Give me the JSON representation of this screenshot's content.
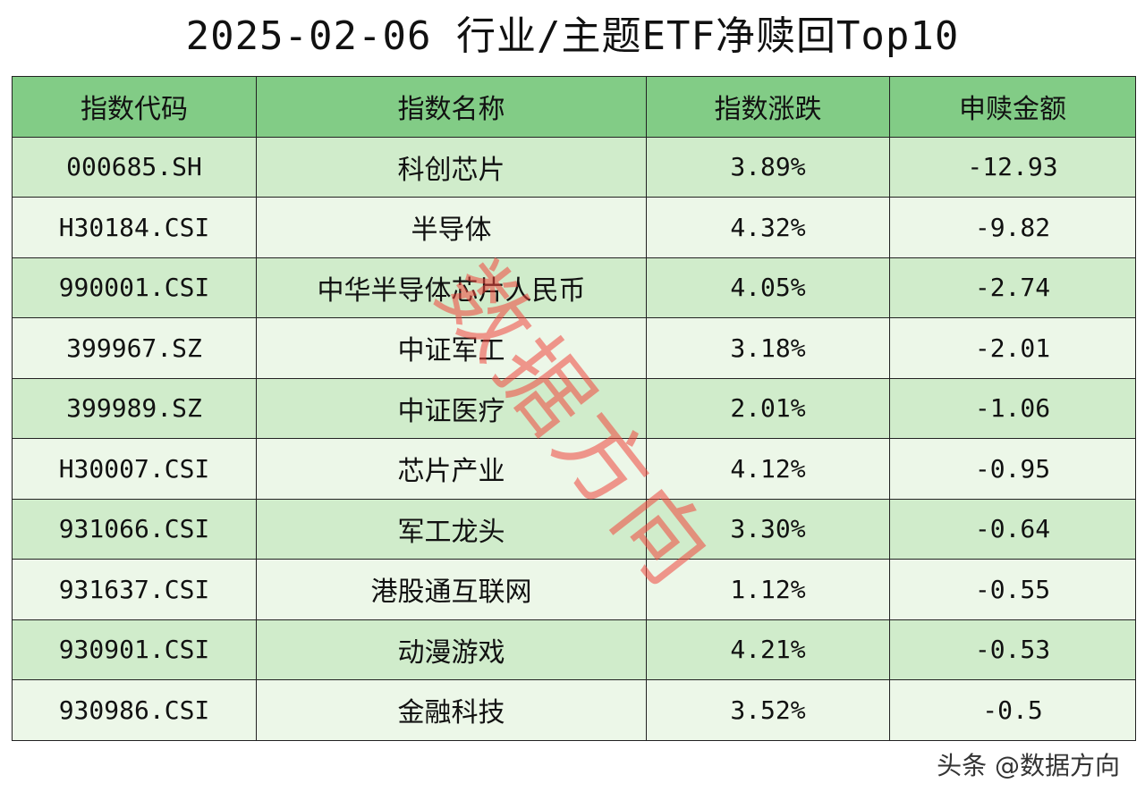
{
  "title": "2025-02-06 行业/主题ETF净赎回Top10",
  "table": {
    "headers": [
      "指数代码",
      "指数名称",
      "指数涨跌",
      "申赎金额"
    ],
    "rows": [
      {
        "code": "000685.SH",
        "name": "科创芯片",
        "change": "3.89%",
        "amount": "-12.93"
      },
      {
        "code": "H30184.CSI",
        "name": "半导体",
        "change": "4.32%",
        "amount": "-9.82"
      },
      {
        "code": "990001.CSI",
        "name": "中华半导体芯片人民币",
        "change": "4.05%",
        "amount": "-2.74"
      },
      {
        "code": "399967.SZ",
        "name": "中证军工",
        "change": "3.18%",
        "amount": "-2.01"
      },
      {
        "code": "399989.SZ",
        "name": "中证医疗",
        "change": "2.01%",
        "amount": "-1.06"
      },
      {
        "code": "H30007.CSI",
        "name": "芯片产业",
        "change": "4.12%",
        "amount": "-0.95"
      },
      {
        "code": "931066.CSI",
        "name": "军工龙头",
        "change": "3.30%",
        "amount": "-0.64"
      },
      {
        "code": "931637.CSI",
        "name": "港股通互联网",
        "change": "1.12%",
        "amount": "-0.55"
      },
      {
        "code": "930901.CSI",
        "name": "动漫游戏",
        "change": "4.21%",
        "amount": "-0.53"
      },
      {
        "code": "930986.CSI",
        "name": "金融科技",
        "change": "3.52%",
        "amount": "-0.5"
      }
    ]
  },
  "watermark": "数据方向",
  "footer": "头条 @数据方向",
  "colors": {
    "header_bg": "#82cc86",
    "row_odd_bg": "#d0eccb",
    "row_even_bg": "#ecf7e8",
    "watermark": "#f0463c"
  }
}
